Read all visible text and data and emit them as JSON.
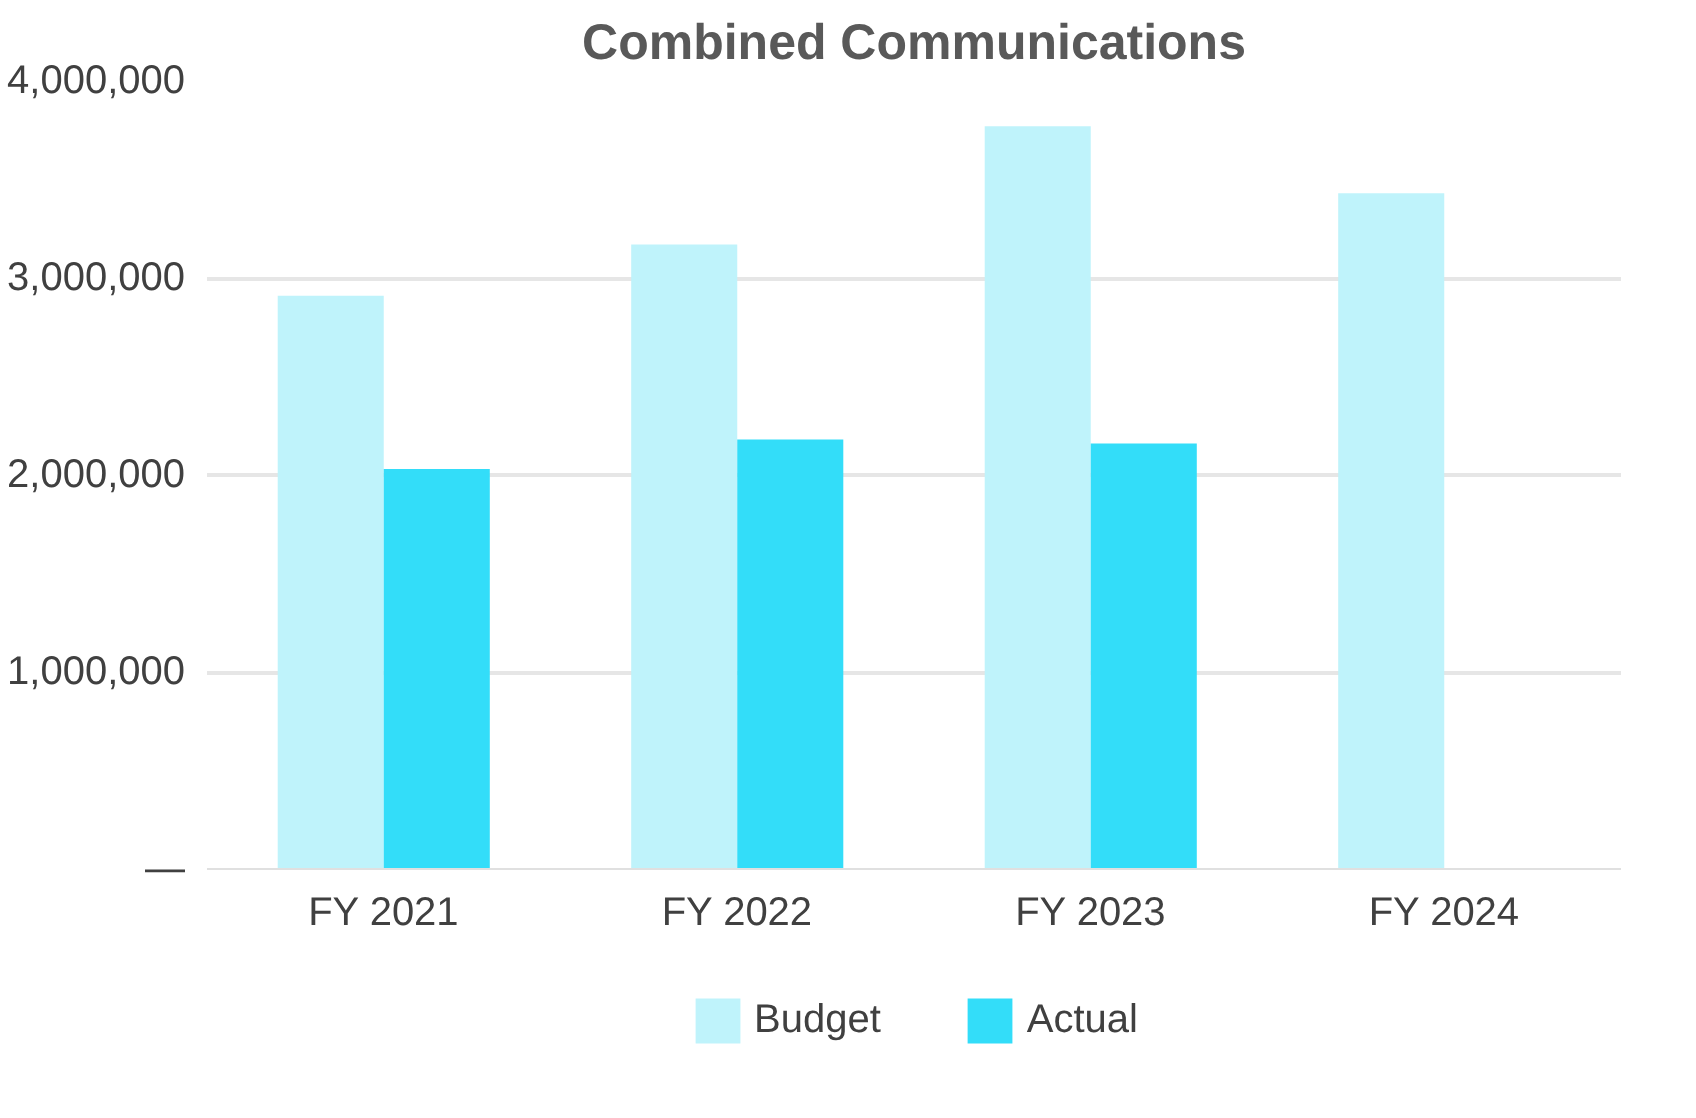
{
  "chart_data": {
    "type": "bar",
    "title": "Combined Communications",
    "categories": [
      "FY 2021",
      "FY 2022",
      "FY 2023",
      "FY 2024"
    ],
    "series": [
      {
        "name": "Budget",
        "color": "#bff3fb",
        "values": [
          2910000,
          3170000,
          3770000,
          3430000
        ]
      },
      {
        "name": "Actual",
        "color": "#33ddf9",
        "values": [
          2030000,
          2180000,
          2160000,
          null
        ]
      }
    ],
    "ylim": [
      0,
      4000000
    ],
    "yticks": [
      {
        "value": 0,
        "label": "—"
      },
      {
        "value": 1000000,
        "label": "1,000,000"
      },
      {
        "value": 2000000,
        "label": "2,000,000"
      },
      {
        "value": 3000000,
        "label": "3,000,000"
      },
      {
        "value": 4000000,
        "label": "4,000,000"
      }
    ],
    "grid": "y",
    "legend": "bottom"
  }
}
